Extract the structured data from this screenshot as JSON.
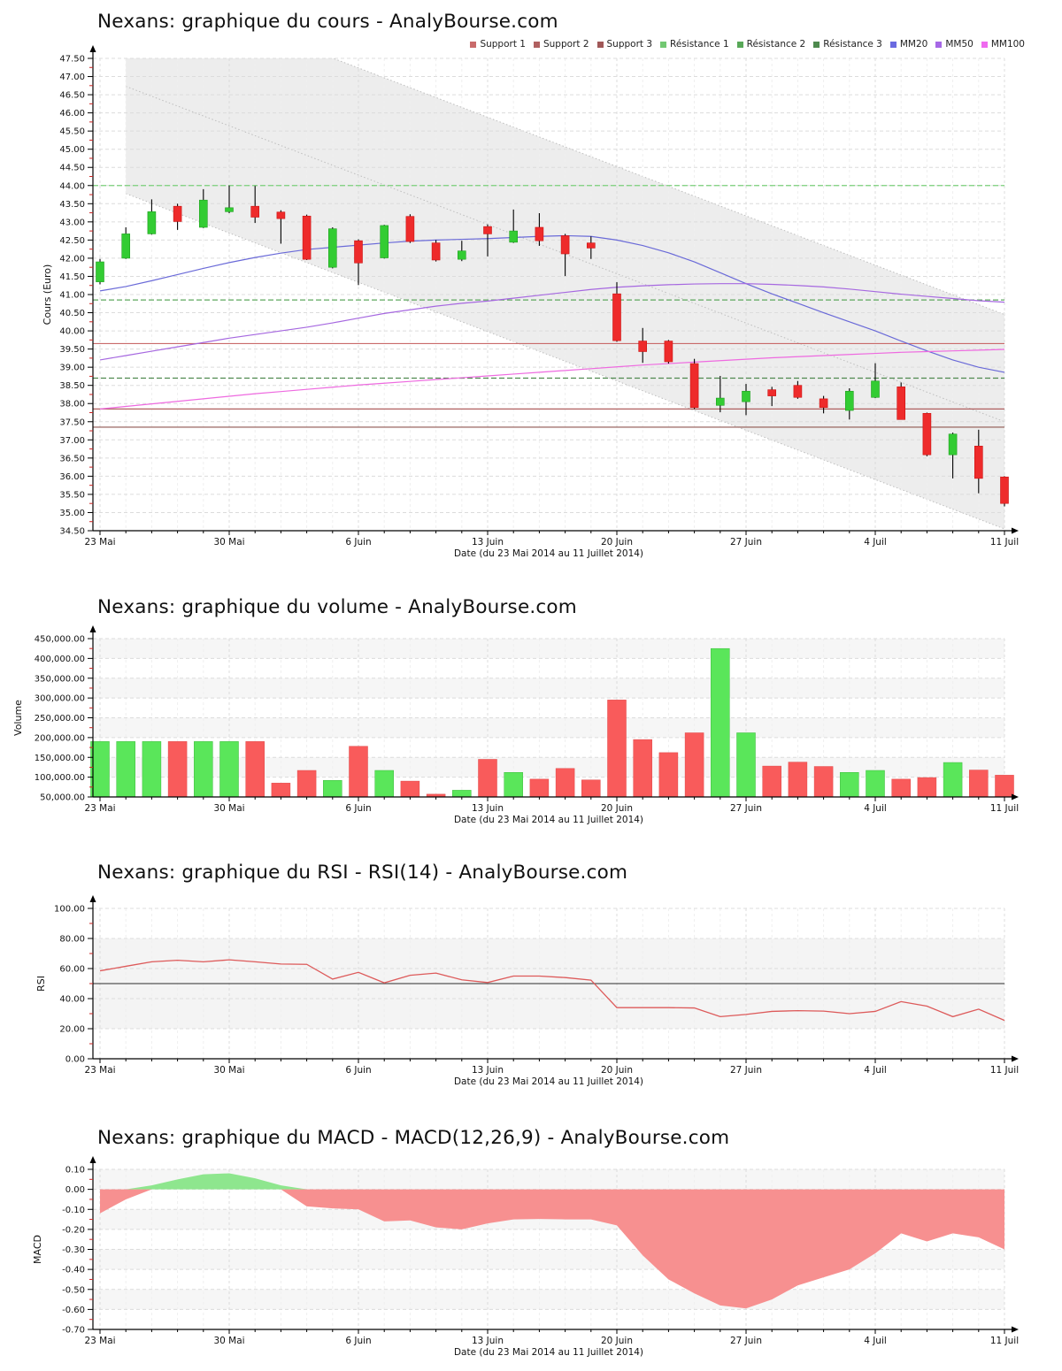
{
  "legend": [
    {
      "label": "Support 1",
      "color": "#c96a6a"
    },
    {
      "label": "Support 2",
      "color": "#b06060"
    },
    {
      "label": "Support 3",
      "color": "#a05858"
    },
    {
      "label": "Résistance 1",
      "color": "#72c872"
    },
    {
      "label": "Résistance 2",
      "color": "#58a858"
    },
    {
      "label": "Résistance 3",
      "color": "#4e8a4e"
    },
    {
      "label": "MM20",
      "color": "#6a6ae0"
    },
    {
      "label": "MM50",
      "color": "#a668e6"
    },
    {
      "label": "MM100",
      "color": "#ef6aef"
    }
  ],
  "colors": {
    "candle_up": "#33cc33",
    "candle_up_edge": "#1f9f1f",
    "candle_down": "#ee2b2b",
    "candle_down_edge": "#cc1111",
    "vol_up": "#5ae65a",
    "vol_down": "#f95b5b",
    "rsi_line": "#dd5a5a",
    "rsi_midline": "#555555",
    "macd_pos": "#8ee68e",
    "macd_neg": "#f79090",
    "mm20": "#6a6ad8",
    "mm50": "#a668e0",
    "mm100": "#ee6ae0",
    "channel_fill": "#ededed",
    "channel_line": "#bdbdbd",
    "grid": "#dcdcdc",
    "grid_minor": "#efefef",
    "stripe": "#f6f6f6",
    "band": "#f4f4f4",
    "axis": "#000000",
    "minor_tick": "#cc2222"
  },
  "chart_data": [
    {
      "type": "candlestick",
      "title": "Nexans: graphique du cours - AnalyBourse.com",
      "ylabel": "Cours (Euro)",
      "xlabel": "Date (du 23 Mai 2014 au 11 Juillet 2014)",
      "ylim": [
        34.5,
        47.5
      ],
      "ytick": 0.5,
      "x_tick_labels": [
        {
          "label": "23 Mai",
          "day": 0
        },
        {
          "label": "30 Mai",
          "day": 5
        },
        {
          "label": "6 Juin",
          "day": 10
        },
        {
          "label": "13 Juin",
          "day": 15
        },
        {
          "label": "20 Juin",
          "day": 20
        },
        {
          "label": "27 Juin",
          "day": 25
        },
        {
          "label": "4 Juil",
          "day": 30
        },
        {
          "label": "11 Juil",
          "day": 35
        }
      ],
      "ohlc": [
        [
          41.35,
          41.98,
          41.28,
          41.9
        ],
        [
          42.0,
          42.85,
          41.98,
          42.67
        ],
        [
          42.67,
          43.62,
          42.65,
          43.28
        ],
        [
          43.43,
          43.5,
          42.78,
          43.01
        ],
        [
          42.85,
          43.9,
          42.83,
          43.6
        ],
        [
          43.28,
          44.0,
          43.24,
          43.39
        ],
        [
          43.43,
          43.99,
          42.97,
          43.13
        ],
        [
          43.27,
          43.32,
          42.4,
          43.09
        ],
        [
          43.16,
          43.2,
          41.95,
          41.97
        ],
        [
          41.75,
          42.85,
          41.72,
          42.81
        ],
        [
          42.48,
          42.52,
          41.26,
          41.87
        ],
        [
          42.01,
          42.92,
          41.99,
          42.9
        ],
        [
          43.15,
          43.21,
          42.42,
          42.46
        ],
        [
          42.42,
          42.5,
          41.91,
          41.95
        ],
        [
          41.97,
          42.48,
          41.92,
          42.2
        ],
        [
          42.87,
          42.93,
          42.05,
          42.67
        ],
        [
          42.44,
          43.34,
          42.42,
          42.75
        ],
        [
          42.85,
          43.24,
          42.34,
          42.48
        ],
        [
          42.62,
          42.67,
          41.51,
          42.12
        ],
        [
          42.42,
          42.6,
          41.98,
          42.28
        ],
        [
          41.02,
          41.34,
          39.7,
          39.73
        ],
        [
          39.72,
          40.08,
          39.12,
          39.43
        ],
        [
          39.72,
          39.75,
          39.1,
          39.15
        ],
        [
          39.1,
          39.23,
          37.85,
          37.89
        ],
        [
          37.95,
          38.76,
          37.76,
          38.15
        ],
        [
          38.05,
          38.54,
          37.68,
          38.34
        ],
        [
          38.38,
          38.46,
          37.93,
          38.21
        ],
        [
          38.5,
          38.62,
          38.13,
          38.17
        ],
        [
          38.13,
          38.21,
          37.73,
          37.89
        ],
        [
          37.81,
          38.42,
          37.56,
          38.34
        ],
        [
          38.17,
          39.11,
          38.15,
          38.62
        ],
        [
          38.46,
          38.58,
          37.56,
          37.56
        ],
        [
          37.73,
          37.75,
          36.55,
          36.59
        ],
        [
          36.59,
          37.2,
          35.94,
          37.16
        ],
        [
          36.83,
          37.28,
          35.53,
          35.94
        ],
        [
          35.98,
          36.0,
          35.17,
          35.25
        ]
      ],
      "mm20": [
        41.1,
        41.22,
        41.38,
        41.55,
        41.72,
        41.88,
        42.02,
        42.14,
        42.24,
        42.3,
        42.36,
        42.42,
        42.47,
        42.5,
        42.52,
        42.54,
        42.57,
        42.6,
        42.62,
        42.6,
        42.5,
        42.35,
        42.15,
        41.9,
        41.6,
        41.3,
        41.02,
        40.76,
        40.5,
        40.25,
        40.0,
        39.72,
        39.45,
        39.2,
        39.0,
        38.86
      ],
      "mm50": [
        39.2,
        39.32,
        39.44,
        39.56,
        39.68,
        39.8,
        39.9,
        40.0,
        40.1,
        40.22,
        40.35,
        40.48,
        40.58,
        40.68,
        40.76,
        40.82,
        40.9,
        40.98,
        41.06,
        41.14,
        41.2,
        41.24,
        41.27,
        41.29,
        41.3,
        41.3,
        41.28,
        41.25,
        41.21,
        41.15,
        41.08,
        41.01,
        40.95,
        40.89,
        40.83,
        40.79
      ],
      "mm100": [
        37.85,
        37.92,
        37.99,
        38.06,
        38.13,
        38.2,
        38.27,
        38.33,
        38.39,
        38.45,
        38.51,
        38.56,
        38.61,
        38.66,
        38.71,
        38.76,
        38.81,
        38.86,
        38.91,
        38.96,
        39.01,
        39.06,
        39.1,
        39.14,
        39.18,
        39.22,
        39.26,
        39.29,
        39.32,
        39.35,
        39.38,
        39.41,
        39.43,
        39.45,
        39.47,
        39.49
      ],
      "supports": [
        {
          "name": "Support 1",
          "value": 39.65,
          "color": "#c96a6a"
        },
        {
          "name": "Support 2",
          "value": 37.85,
          "color": "#b06060"
        },
        {
          "name": "Support 3",
          "value": 37.35,
          "color": "#8f5650"
        }
      ],
      "resistances": [
        {
          "name": "Résistance 1",
          "value": 44.0,
          "color": "#79cf79"
        },
        {
          "name": "Résistance 2",
          "value": 40.85,
          "color": "#5fa85f"
        },
        {
          "name": "Résistance 3",
          "value": 38.7,
          "color": "#4f8a4f"
        }
      ],
      "channel": {
        "day_start": 1,
        "day_end": 35,
        "upper": [
          49.68,
          40.45
        ],
        "mid": [
          46.73,
          37.5
        ],
        "lower": [
          43.78,
          34.55
        ]
      }
    },
    {
      "type": "bar",
      "title": "Nexans: graphique du volume - AnalyBourse.com",
      "ylabel": "Volume",
      "xlabel": "Date (du 23 Mai 2014 au 11 Juillet 2014)",
      "ylim": [
        50000,
        450000
      ],
      "ytick": 50000,
      "values": [
        190000,
        190000,
        190000,
        190000,
        190000,
        190000,
        190000,
        85000,
        117000,
        92000,
        178000,
        117000,
        90000,
        57000,
        67000,
        145000,
        112000,
        95000,
        122000,
        93000,
        295000,
        195000,
        162000,
        212000,
        425000,
        212000,
        128000,
        138000,
        127000,
        112000,
        117000,
        95000,
        99000,
        137000,
        118000,
        105000
      ]
    },
    {
      "type": "line",
      "title": "Nexans: graphique du RSI - RSI(14) - AnalyBourse.com",
      "ylabel": "RSI",
      "xlabel": "Date (du 23 Mai 2014 au 11 Juillet 2014)",
      "ylim": [
        0,
        100
      ],
      "ytick": 20,
      "midline": 50,
      "band": [
        20,
        80
      ],
      "values": [
        58.5,
        61.5,
        64.5,
        65.5,
        64.5,
        65.8,
        64.5,
        63.0,
        62.8,
        53.0,
        57.5,
        50.5,
        55.5,
        57.0,
        52.5,
        50.7,
        55.0,
        55.0,
        54.0,
        52.3,
        34.0,
        34.0,
        34.0,
        33.8,
        28.0,
        29.5,
        31.5,
        32.0,
        31.7,
        30.0,
        31.5,
        38.0,
        35.0,
        28.0,
        33.0,
        25.5
      ]
    },
    {
      "type": "area",
      "title": "Nexans: graphique du MACD - MACD(12,26,9) - AnalyBourse.com",
      "ylabel": "MACD",
      "xlabel": "Date (du 23 Mai 2014 au 11 Juillet 2014)",
      "ylim": [
        -0.7,
        0.1
      ],
      "ytick": 0.1,
      "values": [
        -0.12,
        -0.05,
        0.02,
        0.05,
        0.075,
        0.08,
        0.055,
        0.02,
        -0.085,
        -0.095,
        -0.1,
        -0.16,
        -0.155,
        -0.19,
        -0.2,
        -0.17,
        -0.15,
        -0.148,
        -0.15,
        -0.15,
        -0.18,
        -0.33,
        -0.45,
        -0.52,
        -0.58,
        -0.595,
        -0.55,
        -0.48,
        -0.44,
        -0.4,
        -0.32,
        -0.22,
        -0.26,
        -0.22,
        -0.24,
        -0.3
      ]
    }
  ]
}
